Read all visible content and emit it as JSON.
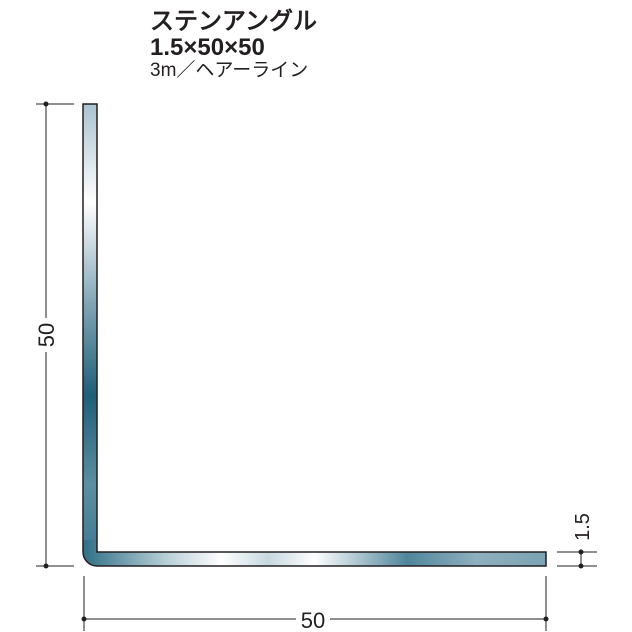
{
  "product": {
    "name": "ステンアングル",
    "size": "1.5×50×50",
    "spec": "3m／ヘアーライン"
  },
  "dimensions": {
    "height_label": "50",
    "width_label": "50",
    "thickness_label": "1.5"
  },
  "colors": {
    "profile_dark": "#2f6f86",
    "profile_light": "#ffffff",
    "line": "#231f20"
  }
}
